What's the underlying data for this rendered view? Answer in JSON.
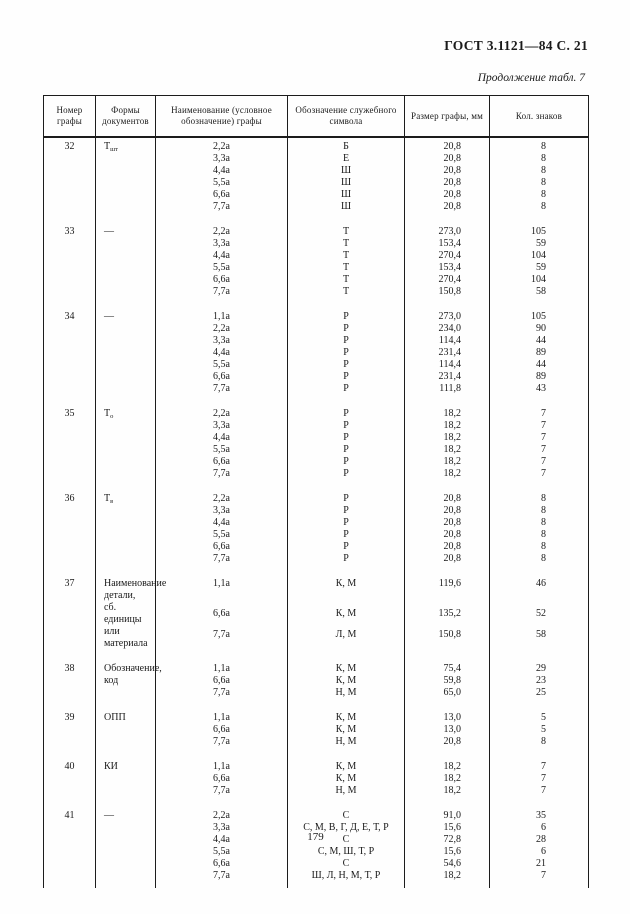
{
  "page": {
    "gost_header": "ГОСТ 3.1121—84 С. 21",
    "continuation": "Продолжение табл. 7",
    "page_number": "179"
  },
  "table": {
    "columns": [
      "Номер графы",
      "Формы документов",
      "Наименование (условное обозначение) графы",
      "Обозначение служебного символа",
      "Размер графы, мм",
      "Кол. знаков"
    ],
    "groups": [
      {
        "num": "32",
        "name": "Т",
        "name_sub": "шт",
        "rows": [
          {
            "form": "2,2а",
            "symbol": "Б",
            "size": "20,8",
            "count": "8"
          },
          {
            "form": "3,3а",
            "symbol": "Е",
            "size": "20,8",
            "count": "8"
          },
          {
            "form": "4,4а",
            "symbol": "Ш",
            "size": "20,8",
            "count": "8"
          },
          {
            "form": "5,5а",
            "symbol": "Ш",
            "size": "20,8",
            "count": "8"
          },
          {
            "form": "6,6а",
            "symbol": "Ш",
            "size": "20,8",
            "count": "8"
          },
          {
            "form": "7,7а",
            "symbol": "Ш",
            "size": "20,8",
            "count": "8"
          }
        ]
      },
      {
        "num": "33",
        "name": "—",
        "rows": [
          {
            "form": "2,2а",
            "symbol": "Т",
            "size": "273,0",
            "count": "105"
          },
          {
            "form": "3,3а",
            "symbol": "Т",
            "size": "153,4",
            "count": "59"
          },
          {
            "form": "4,4а",
            "symbol": "Т",
            "size": "270,4",
            "count": "104"
          },
          {
            "form": "5,5а",
            "symbol": "Т",
            "size": "153,4",
            "count": "59"
          },
          {
            "form": "6,6а",
            "symbol": "Т",
            "size": "270,4",
            "count": "104"
          },
          {
            "form": "7,7а",
            "symbol": "Т",
            "size": "150,8",
            "count": "58"
          }
        ]
      },
      {
        "num": "34",
        "name": "—",
        "rows": [
          {
            "form": "1,1а",
            "symbol": "Р",
            "size": "273,0",
            "count": "105"
          },
          {
            "form": "2,2а",
            "symbol": "Р",
            "size": "234,0",
            "count": "90"
          },
          {
            "form": "3,3а",
            "symbol": "Р",
            "size": "114,4",
            "count": "44"
          },
          {
            "form": "4,4а",
            "symbol": "Р",
            "size": "231,4",
            "count": "89"
          },
          {
            "form": "5,5а",
            "symbol": "Р",
            "size": "114,4",
            "count": "44"
          },
          {
            "form": "6,6а",
            "symbol": "Р",
            "size": "231,4",
            "count": "89"
          },
          {
            "form": "7,7а",
            "symbol": "Р",
            "size": "111,8",
            "count": "43"
          }
        ]
      },
      {
        "num": "35",
        "name": "Т",
        "name_sub": "о",
        "rows": [
          {
            "form": "2,2а",
            "symbol": "Р",
            "size": "18,2",
            "count": "7"
          },
          {
            "form": "3,3а",
            "symbol": "Р",
            "size": "18,2",
            "count": "7"
          },
          {
            "form": "4,4а",
            "symbol": "Р",
            "size": "18,2",
            "count": "7"
          },
          {
            "form": "5,5а",
            "symbol": "Р",
            "size": "18,2",
            "count": "7"
          },
          {
            "form": "6,6а",
            "symbol": "Р",
            "size": "18,2",
            "count": "7"
          },
          {
            "form": "7,7а",
            "symbol": "Р",
            "size": "18,2",
            "count": "7"
          }
        ]
      },
      {
        "num": "36",
        "name": "Т",
        "name_sub": "в",
        "rows": [
          {
            "form": "2,2а",
            "symbol": "Р",
            "size": "20,8",
            "count": "8"
          },
          {
            "form": "3,3а",
            "symbol": "Р",
            "size": "20,8",
            "count": "8"
          },
          {
            "form": "4,4а",
            "symbol": "Р",
            "size": "20,8",
            "count": "8"
          },
          {
            "form": "5,5а",
            "symbol": "Р",
            "size": "20,8",
            "count": "8"
          },
          {
            "form": "6,6а",
            "symbol": "Р",
            "size": "20,8",
            "count": "8"
          },
          {
            "form": "7,7а",
            "symbol": "Р",
            "size": "20,8",
            "count": "8"
          }
        ]
      },
      {
        "num": "37",
        "name": "Наименование детали, сб. единицы или материа­ла",
        "rows": [
          {
            "form": "1,1а",
            "symbol": "К, М",
            "size": "119,6",
            "count": "46"
          },
          {
            "form": "6,6а",
            "symbol": "К, М",
            "size": "135,2",
            "count": "52"
          },
          {
            "form": "7,7а",
            "symbol": "Л, М",
            "size": "150,8",
            "count": "58"
          }
        ]
      },
      {
        "num": "38",
        "name": "Обозначение, код",
        "rows": [
          {
            "form": "1,1а",
            "symbol": "К, М",
            "size": "75,4",
            "count": "29"
          },
          {
            "form": "6,6а",
            "symbol": "К, М",
            "size": "59,8",
            "count": "23"
          },
          {
            "form": "7,7а",
            "symbol": "Н, М",
            "size": "65,0",
            "count": "25"
          }
        ]
      },
      {
        "num": "39",
        "name": "ОПП",
        "rows": [
          {
            "form": "1,1а",
            "symbol": "К, М",
            "size": "13,0",
            "count": "5"
          },
          {
            "form": "6,6а",
            "symbol": "К, М",
            "size": "13,0",
            "count": "5"
          },
          {
            "form": "7,7а",
            "symbol": "Н, М",
            "size": "20,8",
            "count": "8"
          }
        ]
      },
      {
        "num": "40",
        "name": "КИ",
        "rows": [
          {
            "form": "1,1а",
            "symbol": "К, М",
            "size": "18,2",
            "count": "7"
          },
          {
            "form": "6,6а",
            "symbol": "К, М",
            "size": "18,2",
            "count": "7"
          },
          {
            "form": "7,7а",
            "symbol": "Н, М",
            "size": "18,2",
            "count": "7"
          }
        ]
      },
      {
        "num": "41",
        "name": "—",
        "rows": [
          {
            "form": "2,2а",
            "symbol": "С",
            "size": "91,0",
            "count": "35"
          },
          {
            "form": "3,3а",
            "symbol": "С, М, В, Г, Д, Е, Т, Р",
            "size": "15,6",
            "count": "6"
          },
          {
            "form": "4,4а",
            "symbol": "С",
            "size": "72,8",
            "count": "28"
          },
          {
            "form": "5,5а",
            "symbol": "С, М, Ш, Т, Р",
            "size": "15,6",
            "count": "6"
          },
          {
            "form": "6,6а",
            "symbol": "С",
            "size": "54,6",
            "count": "21"
          },
          {
            "form": "7,7а",
            "symbol": "Ш, Л, Н, М, Т, Р",
            "size": "18,2",
            "count": "7"
          }
        ]
      }
    ]
  }
}
